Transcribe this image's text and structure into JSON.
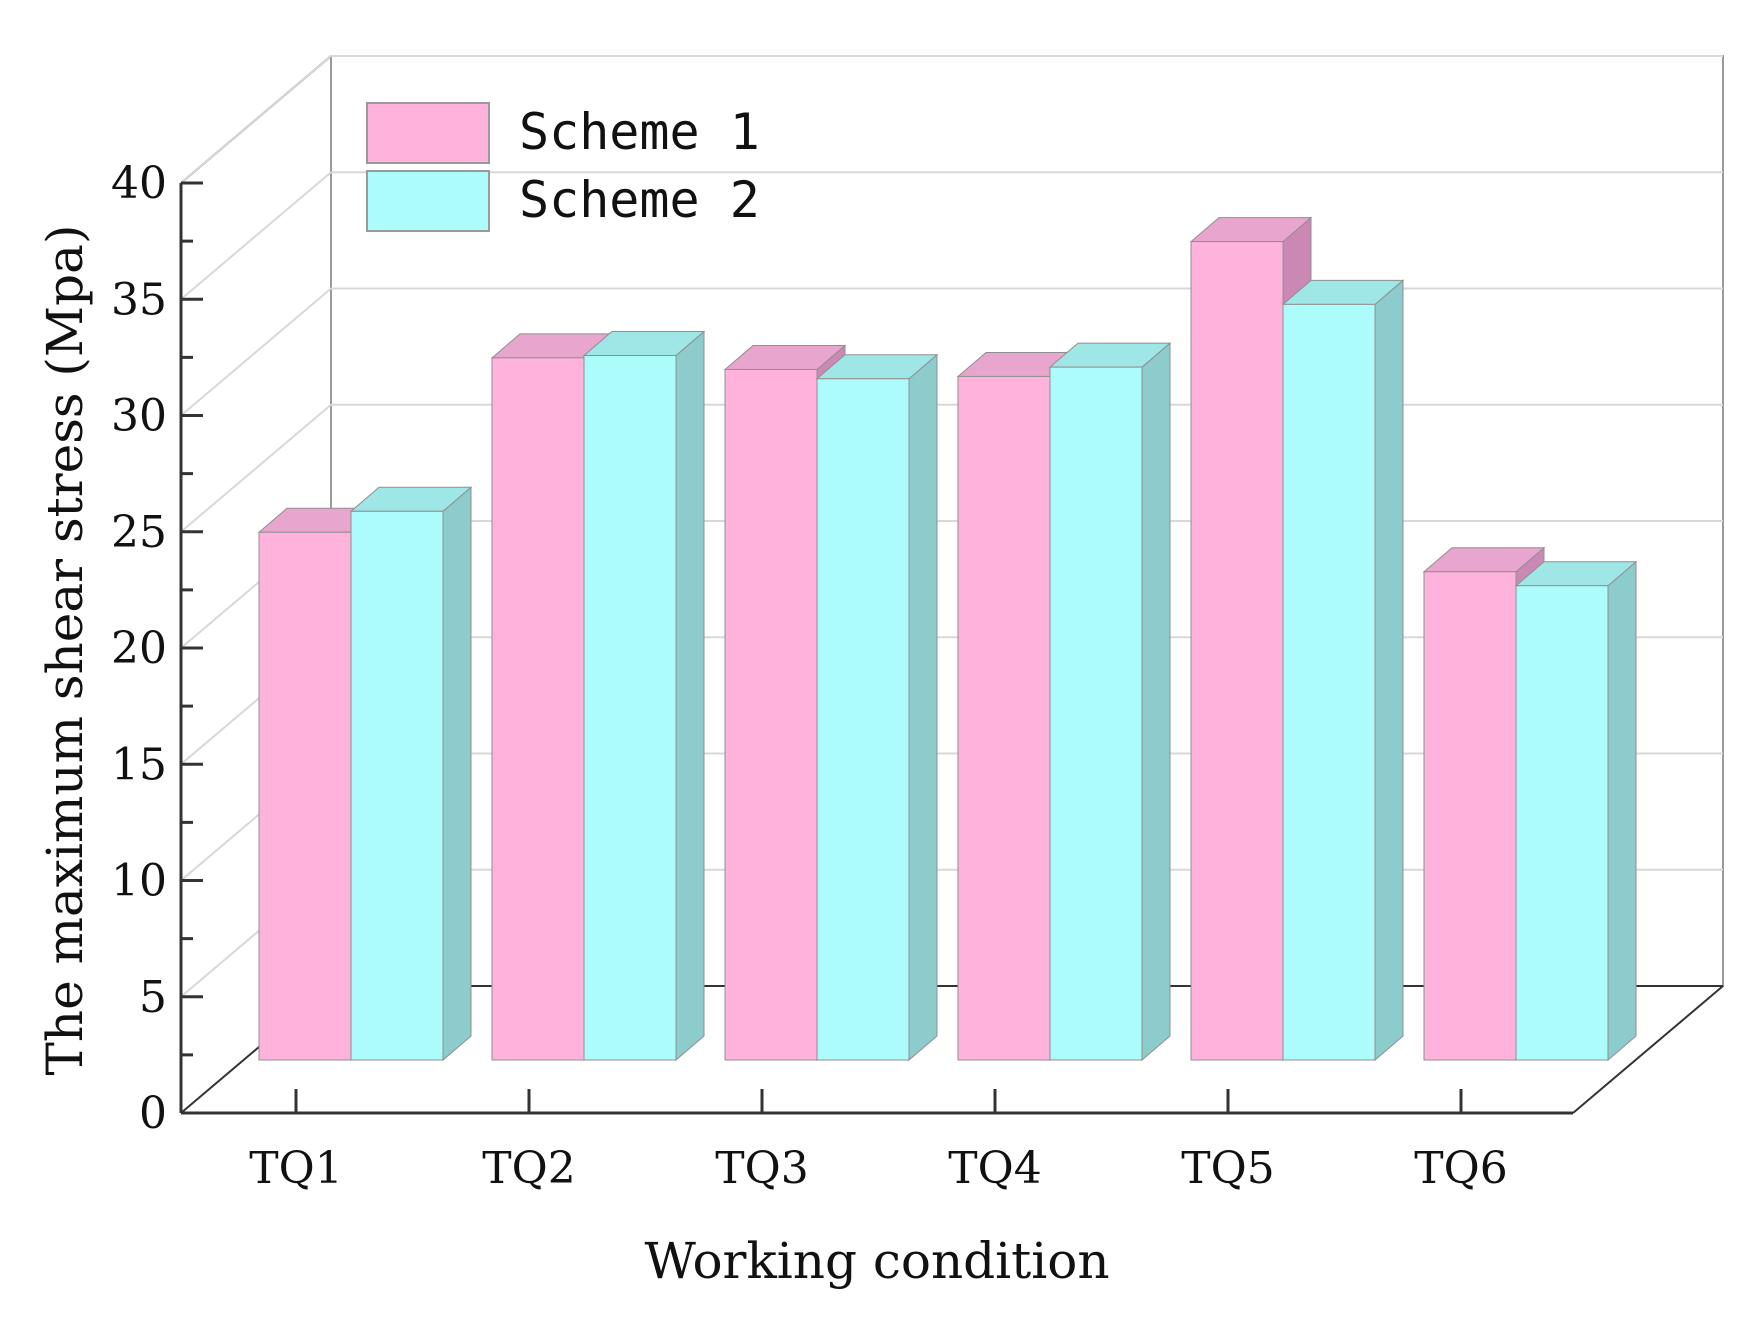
{
  "chart_data": {
    "type": "bar",
    "style": "3d-clustered",
    "title": "",
    "xlabel": "Working condition",
    "ylabel": "The maximum shear stress (Mpa)",
    "categories": [
      "TQ1",
      "TQ2",
      "TQ3",
      "TQ4",
      "TQ5",
      "TQ6"
    ],
    "ylim": [
      0,
      40
    ],
    "yticks": [
      0,
      5,
      10,
      15,
      20,
      25,
      30,
      35,
      40
    ],
    "grid": true,
    "legend_position": "top-left",
    "series": [
      {
        "name": "Scheme 1",
        "values": [
          22.7,
          30.2,
          29.7,
          29.4,
          35.2,
          21.0
        ],
        "color": "#ffb3dc",
        "top_color": "#e8a5cd",
        "side_color": "#cc88b4"
      },
      {
        "name": "Scheme 2",
        "values": [
          23.6,
          30.3,
          29.3,
          29.8,
          32.5,
          20.4
        ],
        "color": "#adfcfc",
        "top_color": "#9fe6e6",
        "side_color": "#8ccccc"
      }
    ]
  }
}
